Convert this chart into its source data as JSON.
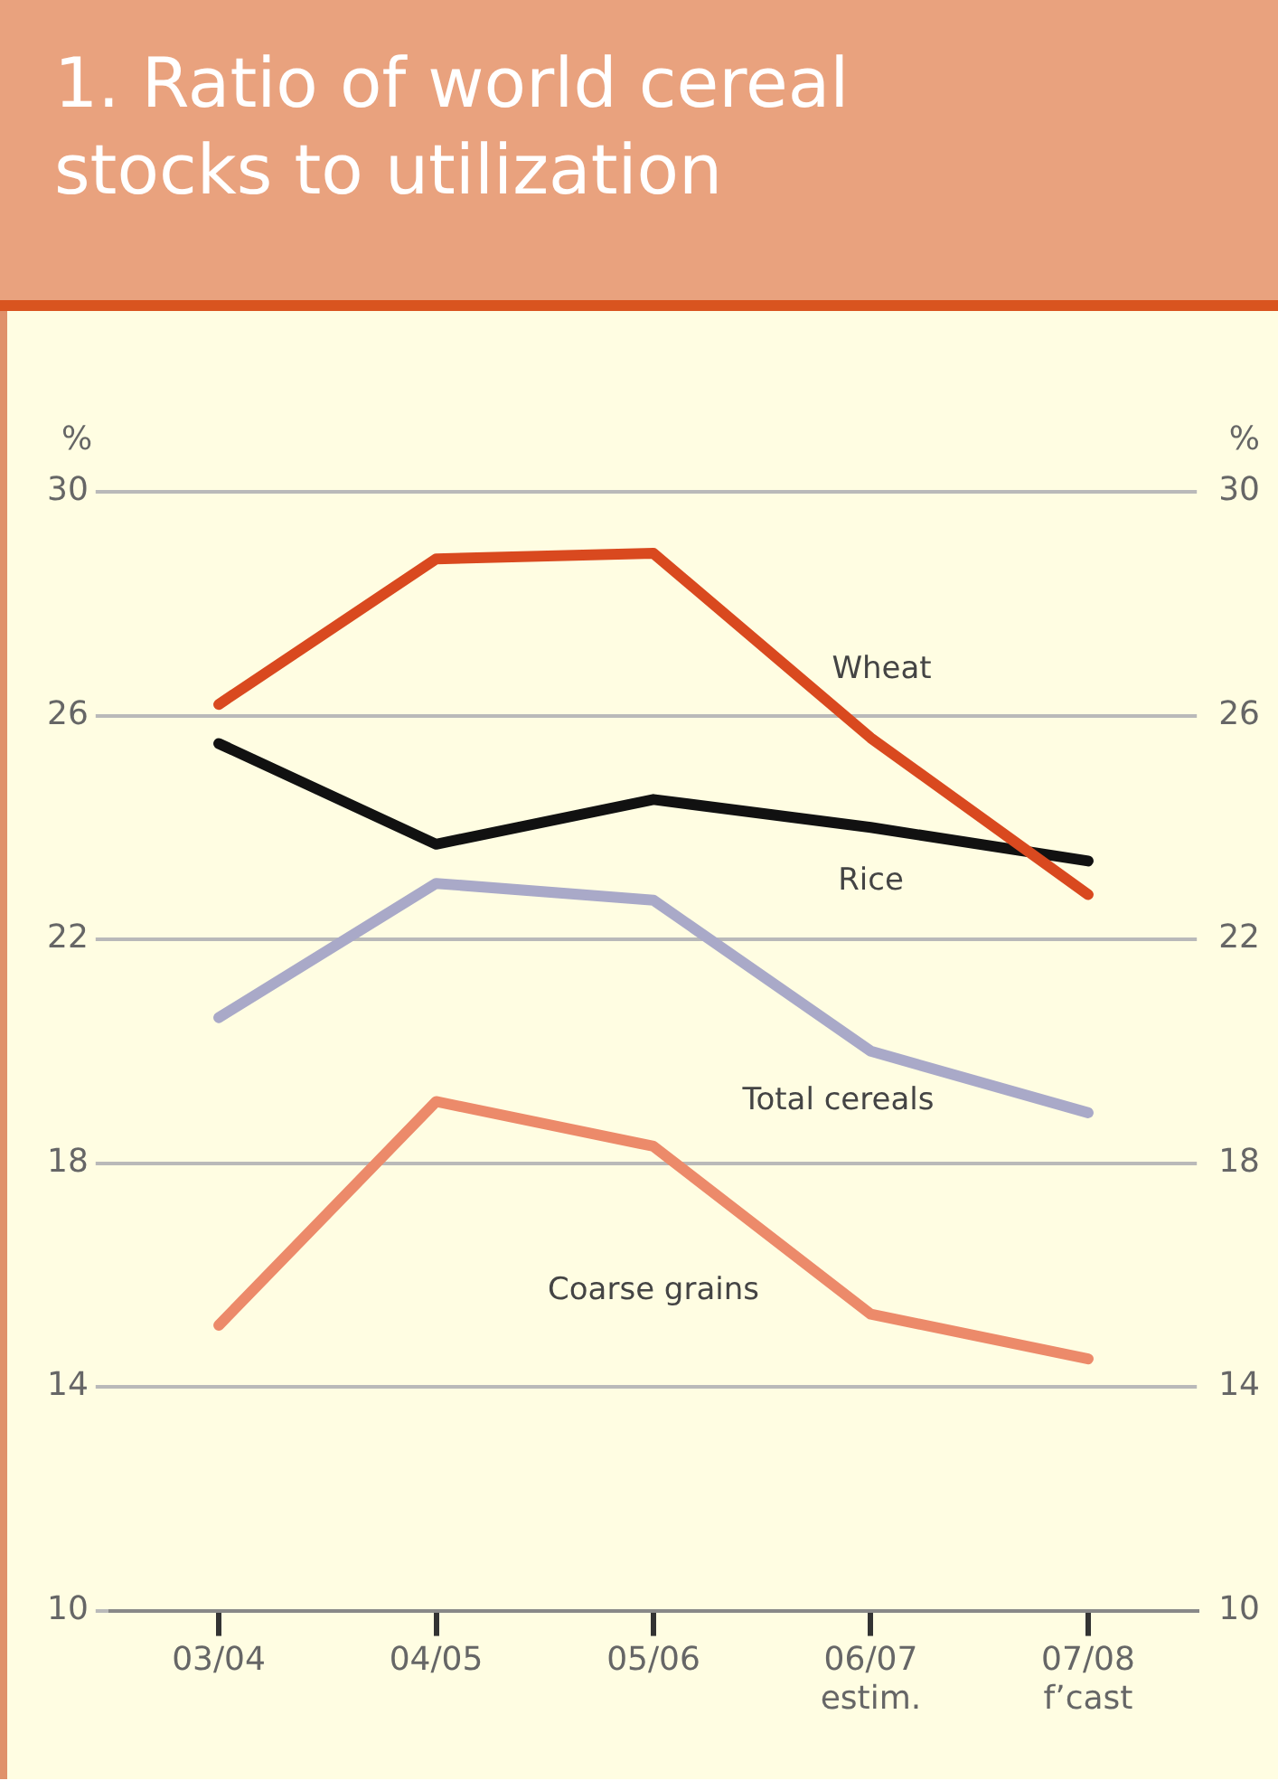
{
  "chart_data": {
    "type": "line",
    "title": "1. Ratio of world cereal stocks to utilization",
    "ylabel": "%",
    "y2label": "%",
    "categories": [
      "03/04",
      "04/05",
      "05/06",
      "06/07\nestim.",
      "07/08\nf’cast"
    ],
    "series": [
      {
        "name": "Wheat",
        "color": "#d9491f",
        "values": [
          26.2,
          28.8,
          28.9,
          25.6,
          22.8
        ]
      },
      {
        "name": "Rice",
        "color": "#111111",
        "values": [
          25.5,
          23.7,
          24.5,
          24.0,
          23.4
        ]
      },
      {
        "name": "Total cereals",
        "color": "#a9a9c8",
        "values": [
          20.6,
          23.0,
          22.7,
          20.0,
          18.9
        ]
      },
      {
        "name": "Coarse grains",
        "color": "#ec8a6a",
        "values": [
          15.1,
          19.1,
          18.3,
          15.3,
          14.5
        ]
      }
    ],
    "ylim": [
      10,
      30
    ],
    "yticks": [
      10,
      14,
      18,
      22,
      26,
      30
    ],
    "y2lim": [
      10,
      30
    ],
    "y2ticks": [
      10,
      14,
      18,
      22,
      26,
      30
    ],
    "grid": "y",
    "legend": false,
    "marker": "none",
    "line_style": "solid"
  }
}
